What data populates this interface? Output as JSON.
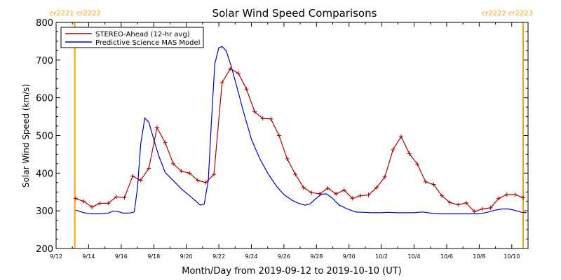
{
  "chart_data": {
    "type": "line",
    "title": "Solar Wind Speed Comparisons",
    "xlabel": "Month/Day from 2019-09-12 to 2019-10-10 (UT)",
    "ylabel": "Solar Wind Speed (km/s)",
    "ylim": [
      200,
      800
    ],
    "yticks": [
      200,
      300,
      400,
      500,
      600,
      700,
      800
    ],
    "xlim_day": [
      0,
      29
    ],
    "xticks": [
      {
        "day": 0,
        "label": "9/12"
      },
      {
        "day": 2,
        "label": "9/14"
      },
      {
        "day": 4,
        "label": "9/16"
      },
      {
        "day": 6,
        "label": "9/18"
      },
      {
        "day": 8,
        "label": "9/20"
      },
      {
        "day": 10,
        "label": "9/22"
      },
      {
        "day": 12,
        "label": "9/24"
      },
      {
        "day": 14,
        "label": "9/26"
      },
      {
        "day": 16,
        "label": "9/28"
      },
      {
        "day": 18,
        "label": "9/30"
      },
      {
        "day": 20,
        "label": "10/2"
      },
      {
        "day": 22,
        "label": "10/4"
      },
      {
        "day": 24,
        "label": "10/6"
      },
      {
        "day": 26,
        "label": "10/8"
      },
      {
        "day": 28,
        "label": "10/10"
      }
    ],
    "legend_position": "top-left",
    "rotations": [
      {
        "day": 1.15,
        "label": "cr2221 cr2222",
        "color": "#ff9f00",
        "label_side": "left"
      },
      {
        "day": 28.7,
        "label": "cr2222 cr2223",
        "color": "#ff9f00",
        "label_side": "right"
      }
    ],
    "series": [
      {
        "name": "STEREO-Ahead (12-hr avg)",
        "color": "#b00000",
        "markers": true,
        "points": [
          [
            1.2,
            333
          ],
          [
            1.7,
            325
          ],
          [
            2.2,
            310
          ],
          [
            2.7,
            320
          ],
          [
            3.2,
            320
          ],
          [
            3.7,
            337
          ],
          [
            4.2,
            335
          ],
          [
            4.7,
            392
          ],
          [
            5.2,
            381
          ],
          [
            5.7,
            413
          ],
          [
            6.2,
            521
          ],
          [
            6.7,
            481
          ],
          [
            7.2,
            425
          ],
          [
            7.7,
            405
          ],
          [
            8.2,
            400
          ],
          [
            8.7,
            381
          ],
          [
            9.2,
            375
          ],
          [
            9.7,
            397
          ],
          [
            10.2,
            640
          ],
          [
            10.7,
            677
          ],
          [
            11.2,
            665
          ],
          [
            11.7,
            623
          ],
          [
            12.2,
            563
          ],
          [
            12.7,
            545
          ],
          [
            13.2,
            544
          ],
          [
            13.7,
            500
          ],
          [
            14.2,
            438
          ],
          [
            14.7,
            397
          ],
          [
            15.2,
            362
          ],
          [
            15.7,
            348
          ],
          [
            16.2,
            345
          ],
          [
            16.7,
            360
          ],
          [
            17.2,
            345
          ],
          [
            17.7,
            355
          ],
          [
            18.2,
            333
          ],
          [
            18.7,
            340
          ],
          [
            19.2,
            342
          ],
          [
            19.7,
            362
          ],
          [
            20.2,
            390
          ],
          [
            20.7,
            462
          ],
          [
            21.2,
            497
          ],
          [
            21.7,
            452
          ],
          [
            22.2,
            424
          ],
          [
            22.7,
            377
          ],
          [
            23.2,
            370
          ],
          [
            23.7,
            340
          ],
          [
            24.2,
            322
          ],
          [
            24.7,
            316
          ],
          [
            25.2,
            321
          ],
          [
            25.7,
            298
          ],
          [
            26.2,
            305
          ],
          [
            26.7,
            308
          ],
          [
            27.2,
            333
          ],
          [
            27.7,
            343
          ],
          [
            28.2,
            343
          ],
          [
            28.7,
            335
          ]
        ]
      },
      {
        "name": "Predictive Science MAS Model",
        "color": "#0000cc",
        "markers": false,
        "points": [
          [
            1.2,
            302
          ],
          [
            1.7,
            295
          ],
          [
            2.2,
            292
          ],
          [
            2.7,
            292
          ],
          [
            3.2,
            294
          ],
          [
            3.5,
            299
          ],
          [
            3.8,
            298
          ],
          [
            4.1,
            294
          ],
          [
            4.5,
            294
          ],
          [
            4.8,
            297
          ],
          [
            5.0,
            360
          ],
          [
            5.2,
            478
          ],
          [
            5.45,
            546
          ],
          [
            5.7,
            535
          ],
          [
            6.0,
            490
          ],
          [
            6.3,
            447
          ],
          [
            6.7,
            402
          ],
          [
            7.2,
            380
          ],
          [
            7.7,
            358
          ],
          [
            8.2,
            340
          ],
          [
            8.6,
            325
          ],
          [
            8.85,
            315
          ],
          [
            9.1,
            318
          ],
          [
            9.35,
            380
          ],
          [
            9.55,
            540
          ],
          [
            9.75,
            690
          ],
          [
            10.0,
            733
          ],
          [
            10.2,
            736
          ],
          [
            10.45,
            725
          ],
          [
            10.75,
            685
          ],
          [
            11.1,
            630
          ],
          [
            11.5,
            565
          ],
          [
            12.0,
            490
          ],
          [
            12.5,
            440
          ],
          [
            13.0,
            400
          ],
          [
            13.5,
            368
          ],
          [
            14.0,
            343
          ],
          [
            14.5,
            328
          ],
          [
            14.9,
            320
          ],
          [
            15.3,
            315
          ],
          [
            15.6,
            318
          ],
          [
            15.9,
            330
          ],
          [
            16.3,
            344
          ],
          [
            16.6,
            345
          ],
          [
            17.0,
            333
          ],
          [
            17.4,
            315
          ],
          [
            17.9,
            305
          ],
          [
            18.4,
            297
          ],
          [
            18.9,
            296
          ],
          [
            19.4,
            295
          ],
          [
            19.9,
            295
          ],
          [
            20.4,
            296
          ],
          [
            20.9,
            295
          ],
          [
            21.5,
            295
          ],
          [
            22.0,
            295
          ],
          [
            22.5,
            297
          ],
          [
            23.0,
            294
          ],
          [
            23.5,
            292
          ],
          [
            24.0,
            292
          ],
          [
            24.5,
            292
          ],
          [
            25.0,
            292
          ],
          [
            25.5,
            292
          ],
          [
            26.0,
            292
          ],
          [
            26.5,
            296
          ],
          [
            27.0,
            302
          ],
          [
            27.4,
            305
          ],
          [
            27.8,
            305
          ],
          [
            28.2,
            301
          ],
          [
            28.6,
            296
          ],
          [
            28.9,
            295
          ]
        ]
      }
    ]
  }
}
